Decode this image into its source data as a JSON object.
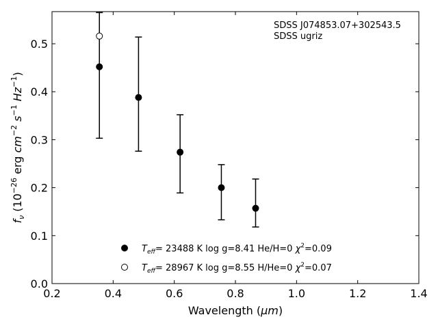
{
  "chart_data": {
    "type": "scatter",
    "annotation": {
      "line1": "SDSS J074853.07+302543.5",
      "line2": "SDSS ugriz"
    },
    "xlabel": {
      "main": "Wavelength (",
      "unit": "μm",
      "close": ")"
    },
    "ylabel": {
      "f": "f",
      "nu": "ν",
      "open": " (10",
      "e26": "−26",
      "erg": " erg ",
      "cm": "cm",
      "em2": "−2",
      "s": " s",
      "em1": "−1",
      "hz": " Hz",
      "em1b": "−1",
      "close": ")"
    },
    "xlim": [
      0.2,
      1.4
    ],
    "ylim": [
      0.0,
      0.567
    ],
    "xticks": [
      0.2,
      0.4,
      0.6,
      0.8,
      1.0,
      1.2,
      1.4
    ],
    "xtick_labels": [
      "0.2",
      "0.4",
      "0.6",
      "0.8",
      "1.0",
      "1.2",
      "1.4"
    ],
    "yticks": [
      0.0,
      0.1,
      0.2,
      0.3,
      0.4,
      0.5
    ],
    "ytick_labels": [
      "0.0",
      "0.1",
      "0.2",
      "0.3",
      "0.4",
      "0.5"
    ],
    "observed": {
      "x": [
        0.355,
        0.483,
        0.619,
        0.754,
        0.866
      ],
      "y": [
        0.452,
        0.388,
        0.274,
        0.2,
        0.157
      ],
      "yerr_low": [
        0.303,
        0.276,
        0.189,
        0.133,
        0.118
      ],
      "yerr_high": [
        0.565,
        0.514,
        0.352,
        0.248,
        0.218
      ]
    },
    "series": [
      {
        "name_T": "T",
        "name_sub": "eff",
        "name_rest": "= 23488 K  log g=8.41  He/H=0  ",
        "name_chi": "χ",
        "name_chi_sup": "2",
        "name_tail": "=0.09",
        "marker": "filled",
        "x": [
          0.355,
          0.483,
          0.619,
          0.754,
          0.866
        ],
        "y": [
          0.452,
          0.388,
          0.274,
          0.2,
          0.157
        ]
      },
      {
        "name_T": "T",
        "name_sub": "eff",
        "name_rest": "= 28967 K  log g=8.55  H/He=0  ",
        "name_chi": "χ",
        "name_chi_sup": "2",
        "name_tail": "=0.07",
        "marker": "open",
        "x": [
          0.355
        ],
        "y": [
          0.516
        ]
      }
    ],
    "legend_position": "bottom-center",
    "colors": {
      "marker": "#000000",
      "open_fill": "#ffffff"
    },
    "grid": false
  }
}
